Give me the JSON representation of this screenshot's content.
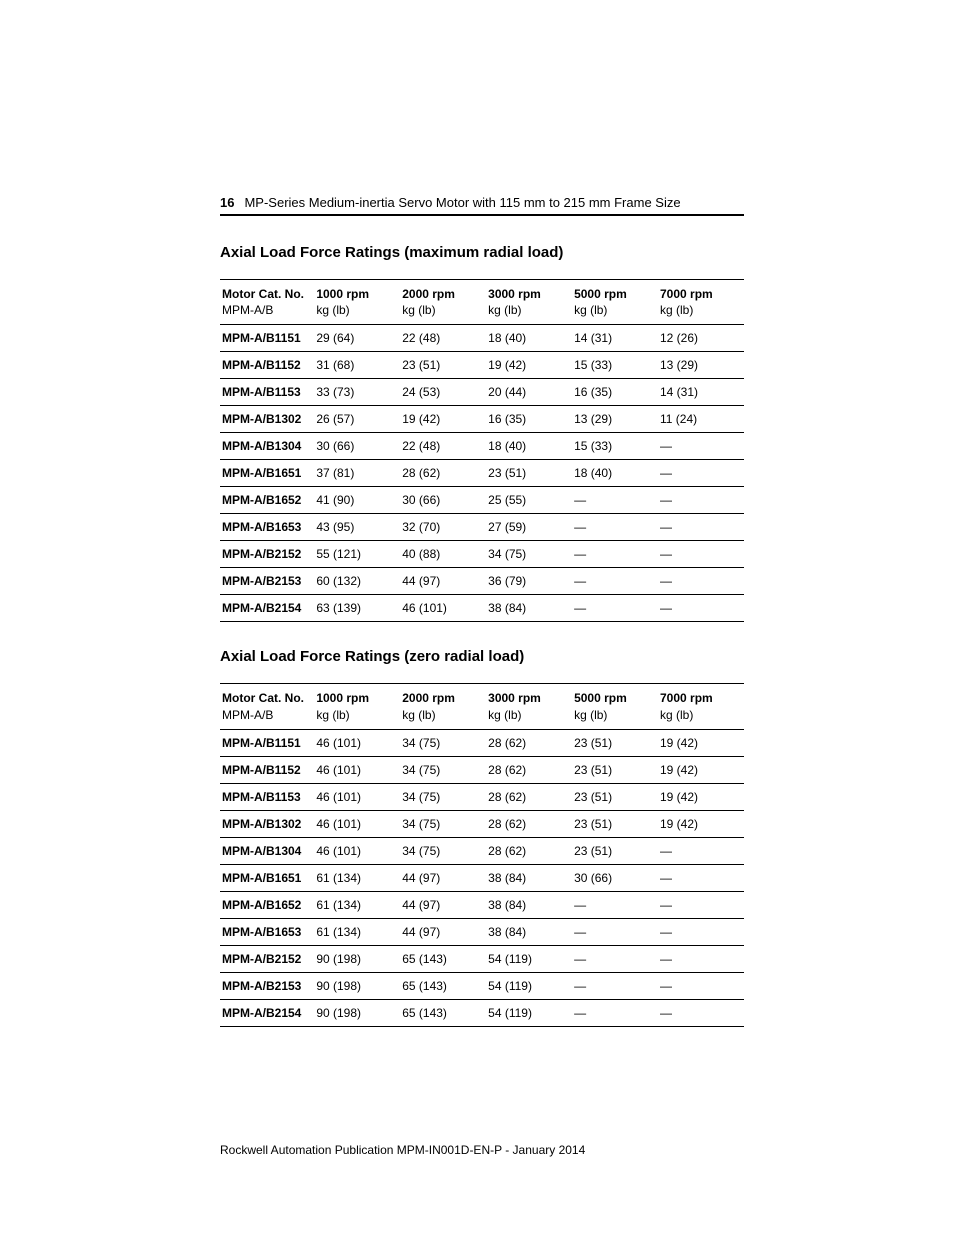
{
  "header": {
    "page_number": "16",
    "doc_title": "MP-Series Medium-inertia Servo Motor with 115 mm to 215 mm Frame Size"
  },
  "section1": {
    "title": "Axial Load Force Ratings (maximum radial load)",
    "columns": [
      {
        "line1": "Motor Cat. No.",
        "line2": "MPM-A/B"
      },
      {
        "line1": "1000 rpm",
        "line2": "kg (lb)"
      },
      {
        "line1": "2000 rpm",
        "line2": "kg (lb)"
      },
      {
        "line1": "3000 rpm",
        "line2": "kg (lb)"
      },
      {
        "line1": "5000 rpm",
        "line2": "kg (lb)"
      },
      {
        "line1": "7000 rpm",
        "line2": "kg (lb)"
      }
    ],
    "rows": [
      [
        "MPM-A/B1151",
        "29 (64)",
        "22 (48)",
        "18 (40)",
        "14 (31)",
        "12 (26)"
      ],
      [
        "MPM-A/B1152",
        "31 (68)",
        "23 (51)",
        "19 (42)",
        "15 (33)",
        "13 (29)"
      ],
      [
        "MPM-A/B1153",
        "33 (73)",
        "24 (53)",
        "20 (44)",
        "16 (35)",
        "14 (31)"
      ],
      [
        "MPM-A/B1302",
        "26 (57)",
        "19 (42)",
        "16 (35)",
        "13 (29)",
        "11 (24)"
      ],
      [
        "MPM-A/B1304",
        "30 (66)",
        "22 (48)",
        "18 (40)",
        "15 (33)",
        "—"
      ],
      [
        "MPM-A/B1651",
        "37 (81)",
        "28 (62)",
        "23 (51)",
        "18 (40)",
        "—"
      ],
      [
        "MPM-A/B1652",
        "41 (90)",
        "30 (66)",
        "25 (55)",
        "—",
        "—"
      ],
      [
        "MPM-A/B1653",
        "43 (95)",
        "32 (70)",
        "27 (59)",
        "—",
        "—"
      ],
      [
        "MPM-A/B2152",
        "55 (121)",
        "40 (88)",
        "34 (75)",
        "—",
        "—"
      ],
      [
        "MPM-A/B2153",
        "60 (132)",
        "44 (97)",
        "36 (79)",
        "—",
        "—"
      ],
      [
        "MPM-A/B2154",
        "63 (139)",
        "46 (101)",
        "38 (84)",
        "—",
        "—"
      ]
    ]
  },
  "section2": {
    "title": "Axial Load Force Ratings (zero radial load)",
    "columns": [
      {
        "line1": "Motor Cat. No.",
        "line2": "MPM-A/B"
      },
      {
        "line1": "1000 rpm",
        "line2": "kg (lb)"
      },
      {
        "line1": "2000 rpm",
        "line2": "kg (lb)"
      },
      {
        "line1": "3000 rpm",
        "line2": "kg (lb)"
      },
      {
        "line1": "5000 rpm",
        "line2": "kg (lb)"
      },
      {
        "line1": "7000 rpm",
        "line2": "kg (lb)"
      }
    ],
    "rows": [
      [
        "MPM-A/B1151",
        "46 (101)",
        "34 (75)",
        "28 (62)",
        "23 (51)",
        "19 (42)"
      ],
      [
        "MPM-A/B1152",
        "46 (101)",
        "34 (75)",
        "28 (62)",
        "23 (51)",
        "19 (42)"
      ],
      [
        "MPM-A/B1153",
        "46 (101)",
        "34 (75)",
        "28 (62)",
        "23 (51)",
        "19 (42)"
      ],
      [
        "MPM-A/B1302",
        "46 (101)",
        "34 (75)",
        "28 (62)",
        "23 (51)",
        "19 (42)"
      ],
      [
        "MPM-A/B1304",
        "46 (101)",
        "34 (75)",
        "28 (62)",
        "23 (51)",
        "—"
      ],
      [
        "MPM-A/B1651",
        "61 (134)",
        "44 (97)",
        "38 (84)",
        "30 (66)",
        "—"
      ],
      [
        "MPM-A/B1652",
        "61 (134)",
        "44 (97)",
        "38 (84)",
        "—",
        "—"
      ],
      [
        "MPM-A/B1653",
        "61 (134)",
        "44 (97)",
        "38 (84)",
        "—",
        "—"
      ],
      [
        "MPM-A/B2152",
        "90 (198)",
        "65 (143)",
        "54 (119)",
        "—",
        "—"
      ],
      [
        "MPM-A/B2153",
        "90 (198)",
        "65 (143)",
        "54 (119)",
        "—",
        "—"
      ],
      [
        "MPM-A/B2154",
        "90 (198)",
        "65 (143)",
        "54 (119)",
        "—",
        "—"
      ]
    ]
  },
  "footer": {
    "text": "Rockwell Automation Publication MPM-IN001D-EN-P - January 2014"
  }
}
